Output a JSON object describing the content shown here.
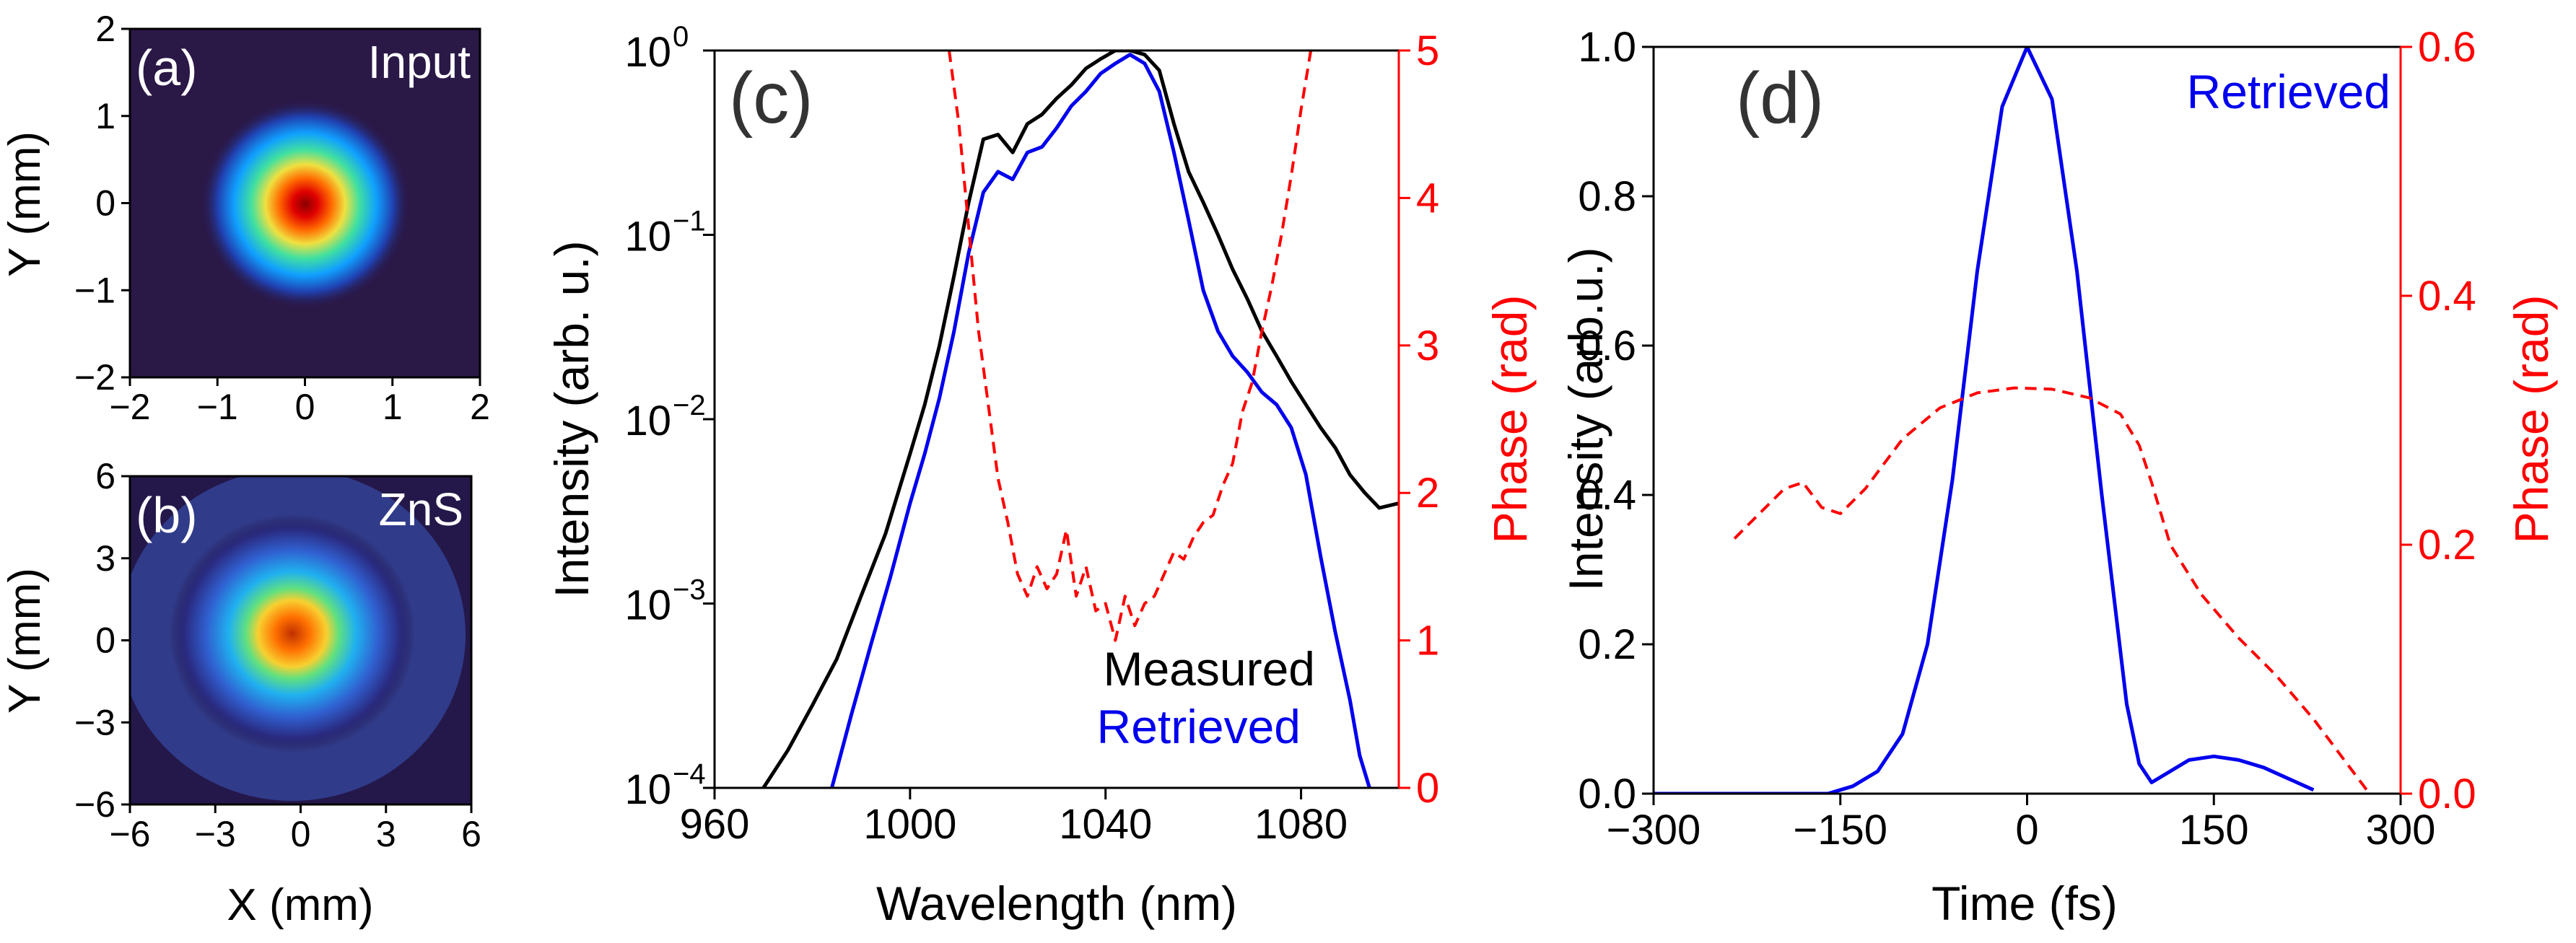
{
  "figure": {
    "description_free": true
  },
  "chart_data": [
    {
      "id": "a",
      "type": "heatmap",
      "panel_label": "(a)",
      "annotation": "Input",
      "xlabel": "",
      "ylabel": "Y (mm)",
      "xlim": [
        -2,
        2
      ],
      "ylim": [
        -2,
        2
      ],
      "xticks": [
        -2,
        -1,
        0,
        1,
        2
      ],
      "yticks": [
        -2,
        -1,
        0,
        1,
        2
      ],
      "xtick_labels": [
        "−2",
        "−1",
        "0",
        "1",
        "2"
      ],
      "ytick_labels": [
        "−2",
        "−1",
        "0",
        "1",
        "2"
      ],
      "beam": {
        "center": [
          0,
          0
        ],
        "radius_1e2": 0.55
      },
      "colormap": "jet"
    },
    {
      "id": "b",
      "type": "heatmap",
      "panel_label": "(b)",
      "annotation": "ZnS",
      "xlabel": "X (mm)",
      "ylabel": "Y (mm)",
      "xlim": [
        -6,
        6
      ],
      "ylim": [
        -6,
        6
      ],
      "xticks": [
        -6,
        -3,
        0,
        3,
        6
      ],
      "yticks": [
        -6,
        -3,
        0,
        3,
        6
      ],
      "xtick_labels": [
        "−6",
        "−3",
        "0",
        "3",
        "6"
      ],
      "ytick_labels": [
        "−6",
        "−3",
        "0",
        "3",
        "6"
      ],
      "beam": {
        "center": [
          -0.3,
          0.2
        ],
        "radius_1e2": 1.6
      },
      "colormap": "jet"
    },
    {
      "id": "c",
      "type": "line",
      "panel_label": "(c)",
      "xlabel": "Wavelength (nm)",
      "ylabel": "Intensity (arb. u.)",
      "y2label": "Phase (rad)",
      "xlim": [
        960,
        1100
      ],
      "ylim": [
        0.0001,
        1
      ],
      "y2lim": [
        0,
        5
      ],
      "yscale": "log",
      "xticks": [
        960,
        1000,
        1040,
        1080
      ],
      "yticks": [
        0.0001,
        0.001,
        0.01,
        0.1,
        1
      ],
      "ytick_labels": [
        {
          "base": "10",
          "exp": "−4"
        },
        {
          "base": "10",
          "exp": "−3"
        },
        {
          "base": "10",
          "exp": "−2"
        },
        {
          "base": "10",
          "exp": "−1"
        },
        {
          "base": "10",
          "exp": "0"
        }
      ],
      "y2ticks": [
        0,
        1,
        2,
        3,
        4,
        5
      ],
      "legend": [
        "Measured",
        "Retrieved"
      ],
      "series": [
        {
          "name": "Measured",
          "color": "#000000",
          "style": "solid",
          "axis": "left",
          "x": [
            970,
            975,
            980,
            985,
            990,
            995,
            1000,
            1003,
            1006,
            1009,
            1012,
            1015,
            1018,
            1021,
            1024,
            1027,
            1030,
            1033,
            1036,
            1039,
            1042,
            1045,
            1048,
            1051,
            1054,
            1057,
            1060,
            1063,
            1066,
            1069,
            1072,
            1075,
            1078,
            1081,
            1084,
            1087,
            1090,
            1093,
            1096,
            1100
          ],
          "y": [
            0.0001,
            0.00016,
            0.00028,
            0.0005,
            0.0011,
            0.0024,
            0.0065,
            0.012,
            0.025,
            0.06,
            0.15,
            0.33,
            0.35,
            0.28,
            0.4,
            0.45,
            0.55,
            0.65,
            0.8,
            0.9,
            1.0,
            1.0,
            0.95,
            0.78,
            0.4,
            0.22,
            0.15,
            0.1,
            0.065,
            0.045,
            0.03,
            0.022,
            0.016,
            0.012,
            0.009,
            0.007,
            0.005,
            0.004,
            0.0033,
            0.0035
          ]
        },
        {
          "name": "Retrieved",
          "color": "#0000ee",
          "style": "solid",
          "axis": "left",
          "x": [
            984,
            988,
            992,
            996,
            1000,
            1003,
            1006,
            1009,
            1012,
            1015,
            1018,
            1021,
            1024,
            1027,
            1030,
            1033,
            1036,
            1039,
            1042,
            1045,
            1048,
            1051,
            1054,
            1057,
            1060,
            1063,
            1066,
            1069,
            1072,
            1075,
            1078,
            1081,
            1084,
            1087,
            1090,
            1092,
            1094
          ],
          "y": [
            0.0001,
            0.00025,
            0.0006,
            0.0014,
            0.0035,
            0.0065,
            0.013,
            0.03,
            0.08,
            0.17,
            0.22,
            0.2,
            0.28,
            0.3,
            0.38,
            0.5,
            0.6,
            0.75,
            0.85,
            0.95,
            0.85,
            0.6,
            0.28,
            0.12,
            0.05,
            0.03,
            0.022,
            0.018,
            0.014,
            0.012,
            0.009,
            0.005,
            0.0018,
            0.0007,
            0.0003,
            0.00015,
            0.0001
          ]
        },
        {
          "name": "Phase",
          "color": "#ff0000",
          "style": "dashed",
          "axis": "right",
          "x": [
            1008,
            1010,
            1012,
            1014,
            1016,
            1018,
            1020,
            1022,
            1024,
            1026,
            1028,
            1030,
            1032,
            1034,
            1036,
            1038,
            1040,
            1042,
            1044,
            1046,
            1048,
            1050,
            1052,
            1054,
            1056,
            1058,
            1060,
            1062,
            1064,
            1066,
            1068,
            1070,
            1072,
            1074,
            1076,
            1078,
            1080,
            1082
          ],
          "y": [
            5.0,
            4.5,
            3.8,
            3.1,
            2.6,
            2.1,
            1.8,
            1.45,
            1.3,
            1.5,
            1.35,
            1.45,
            1.75,
            1.3,
            1.5,
            1.2,
            1.25,
            1.0,
            1.3,
            1.1,
            1.25,
            1.3,
            1.45,
            1.6,
            1.55,
            1.7,
            1.8,
            1.85,
            2.05,
            2.2,
            2.55,
            2.75,
            3.1,
            3.4,
            3.75,
            4.15,
            4.6,
            5.0
          ]
        }
      ]
    },
    {
      "id": "d",
      "type": "line",
      "panel_label": "(d)",
      "xlabel": "Time (fs)",
      "ylabel": "Intensity (arb.u.)",
      "y2label": "Phase (rad)",
      "xlim": [
        -300,
        300
      ],
      "ylim": [
        0,
        1.0
      ],
      "y2lim": [
        0,
        0.6
      ],
      "xticks": [
        -300,
        -150,
        0,
        150,
        300
      ],
      "xtick_labels": [
        "−300",
        "−150",
        "0",
        "150",
        "300"
      ],
      "yticks": [
        0.0,
        0.2,
        0.4,
        0.6,
        0.8,
        1.0
      ],
      "ytick_labels": [
        "0.0",
        "0.2",
        "0.4",
        "0.6",
        "0.8",
        "1.0"
      ],
      "y2ticks": [
        0.0,
        0.2,
        0.4,
        0.6
      ],
      "y2tick_labels": [
        "0.0",
        "0.2",
        "0.4",
        "0.6"
      ],
      "legend": [
        "Retrieved"
      ],
      "series": [
        {
          "name": "Retrieved",
          "color": "#0000ee",
          "style": "solid",
          "axis": "left",
          "x": [
            -300,
            -200,
            -160,
            -140,
            -120,
            -100,
            -80,
            -60,
            -40,
            -20,
            0,
            20,
            40,
            60,
            80,
            90,
            100,
            110,
            130,
            150,
            170,
            190,
            210,
            230
          ],
          "y": [
            0.0,
            0.0,
            0.0,
            0.01,
            0.03,
            0.08,
            0.2,
            0.42,
            0.7,
            0.92,
            1.0,
            0.93,
            0.7,
            0.4,
            0.12,
            0.04,
            0.015,
            0.025,
            0.045,
            0.05,
            0.045,
            0.035,
            0.02,
            0.005
          ]
        },
        {
          "name": "Phase",
          "color": "#ff0000",
          "style": "dashed",
          "axis": "right",
          "x": [
            -235,
            -215,
            -195,
            -180,
            -165,
            -150,
            -130,
            -100,
            -70,
            -40,
            -10,
            20,
            50,
            75,
            90,
            100,
            115,
            140,
            170,
            200,
            230,
            260,
            275
          ],
          "y": [
            0.205,
            0.225,
            0.245,
            0.25,
            0.23,
            0.225,
            0.245,
            0.285,
            0.31,
            0.322,
            0.326,
            0.325,
            0.318,
            0.305,
            0.28,
            0.25,
            0.2,
            0.16,
            0.125,
            0.095,
            0.06,
            0.02,
            0.0
          ]
        }
      ]
    }
  ]
}
